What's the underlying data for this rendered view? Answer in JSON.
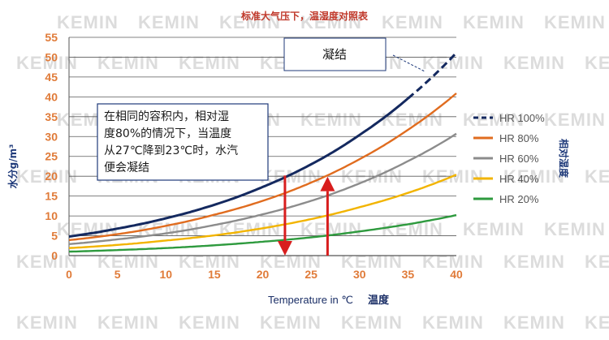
{
  "chart_data": {
    "type": "line",
    "title": "标准大气压下，温湿度对照表",
    "xlabel_en": "Temperature in ℃",
    "xlabel_zh": "温度",
    "ylabel": "水分g/m³",
    "legend_title": "相对湿度",
    "x": [
      0,
      5,
      10,
      15,
      20,
      25,
      30,
      35,
      40
    ],
    "xlim": [
      0,
      40
    ],
    "ylim": [
      0,
      55
    ],
    "x_ticks": [
      "0",
      "5",
      "10",
      "15",
      "20",
      "25",
      "30",
      "35",
      "40"
    ],
    "y_ticks": [
      "0",
      "5",
      "10",
      "15",
      "20",
      "25",
      "30",
      "35",
      "40",
      "45",
      "50",
      "55"
    ],
    "grid": "horizontal",
    "legend_position": "right",
    "series": [
      {
        "name": "HR 100%",
        "color": "#14295f",
        "style": "dashed-above-35",
        "values": [
          4.8,
          6.8,
          9.4,
          12.8,
          17.3,
          23.0,
          30.4,
          39.6,
          51.1
        ]
      },
      {
        "name": "HR 80%",
        "color": "#e06c1f",
        "style": "solid",
        "values": [
          3.9,
          5.4,
          7.5,
          10.3,
          13.8,
          18.4,
          24.3,
          31.7,
          40.9
        ]
      },
      {
        "name": "HR 60%",
        "color": "#8c8c8c",
        "style": "solid",
        "values": [
          2.9,
          4.1,
          5.6,
          7.7,
          10.4,
          13.8,
          18.2,
          23.8,
          30.7
        ]
      },
      {
        "name": "HR 40%",
        "color": "#f2b400",
        "style": "solid",
        "values": [
          1.9,
          2.7,
          3.8,
          5.1,
          6.9,
          9.2,
          12.2,
          15.8,
          20.4
        ]
      },
      {
        "name": "HR 20%",
        "color": "#2e9a3e",
        "style": "solid",
        "values": [
          1.0,
          1.4,
          1.9,
          2.6,
          3.5,
          4.6,
          6.1,
          7.9,
          10.2
        ]
      }
    ],
    "annotations": {
      "condensation_label": "凝结",
      "note_lines": [
        "在相同的容积内，相对湿",
        "度80%的情况下，当温度",
        "从27℃降到23℃时，水汽",
        "便会凝结"
      ],
      "arrow_down": {
        "x": 22.3,
        "from": 20.2,
        "to": 0
      },
      "arrow_up": {
        "x": 26.7,
        "from": 0,
        "to": 19.9
      }
    },
    "watermark": "KEMIN"
  }
}
